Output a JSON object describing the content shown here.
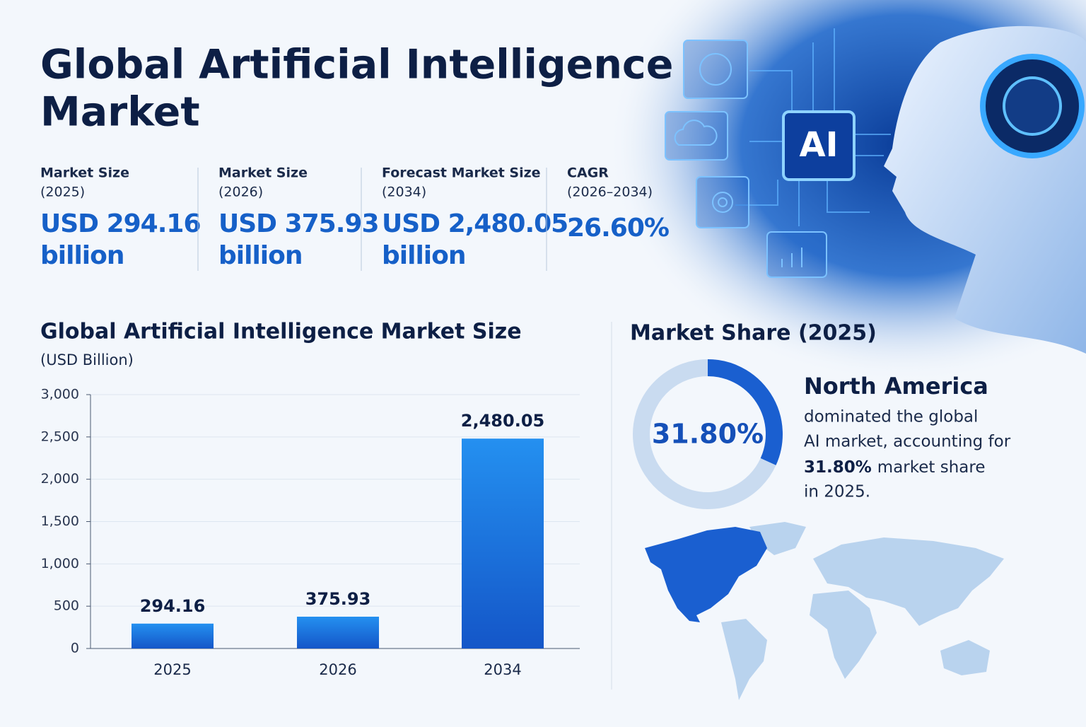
{
  "header": {
    "title_lines": [
      "Global Artificial Intelligence",
      "Market"
    ]
  },
  "stats": [
    {
      "label_lines": [
        "Market Size",
        "(2025)"
      ],
      "value_lines": [
        "USD 294.16",
        "billion"
      ]
    },
    {
      "label_lines": [
        "Market Size",
        "(2026)"
      ],
      "value_lines": [
        "USD 375.93",
        "billion"
      ]
    },
    {
      "label_lines": [
        "Forecast Market Size",
        "(2034)"
      ],
      "value_lines": [
        "USD 2,480.05",
        "billion"
      ]
    },
    {
      "label_lines": [
        "CAGR",
        "(2026–2034)"
      ],
      "value_lines": [
        "26.60%"
      ]
    }
  ],
  "illustration_label": "AI",
  "chart_data": [
    {
      "type": "bar",
      "title": "Global Artificial Intelligence Market Size",
      "subtitle": "(USD Billion)",
      "categories": [
        "2025",
        "2026",
        "2034"
      ],
      "values": [
        294.16,
        375.93,
        2480.05
      ],
      "value_labels": [
        "294.16",
        "375.93",
        "2,480.05"
      ],
      "color": "#2490f0",
      "ylim": [
        0,
        3000
      ],
      "yticks": [
        0,
        500,
        {
          "value": 1000,
          "label": "1,000"
        },
        {
          "value": 1500,
          "label": "1,500"
        },
        {
          "value": 2000,
          "label": "2,000"
        },
        {
          "value": 2500,
          "label": "2,500"
        },
        {
          "value": 3000,
          "label": "3,000"
        }
      ],
      "grid": true
    },
    {
      "type": "pie",
      "donut": true,
      "title": "Market Share (2025)",
      "categories": [
        "North America",
        null
      ],
      "values": [
        31.8,
        68.2
      ],
      "value_labels": [
        "31.80%",
        null
      ],
      "colors": [
        "#1a5fd0",
        "#c9dbf0"
      ]
    }
  ],
  "share_text": {
    "lines": [
      "dominated the global",
      "AI market, accounting for"
    ],
    "highlight": "31.80%",
    "after_highlight": "market share",
    "last_line": "in 2025."
  }
}
